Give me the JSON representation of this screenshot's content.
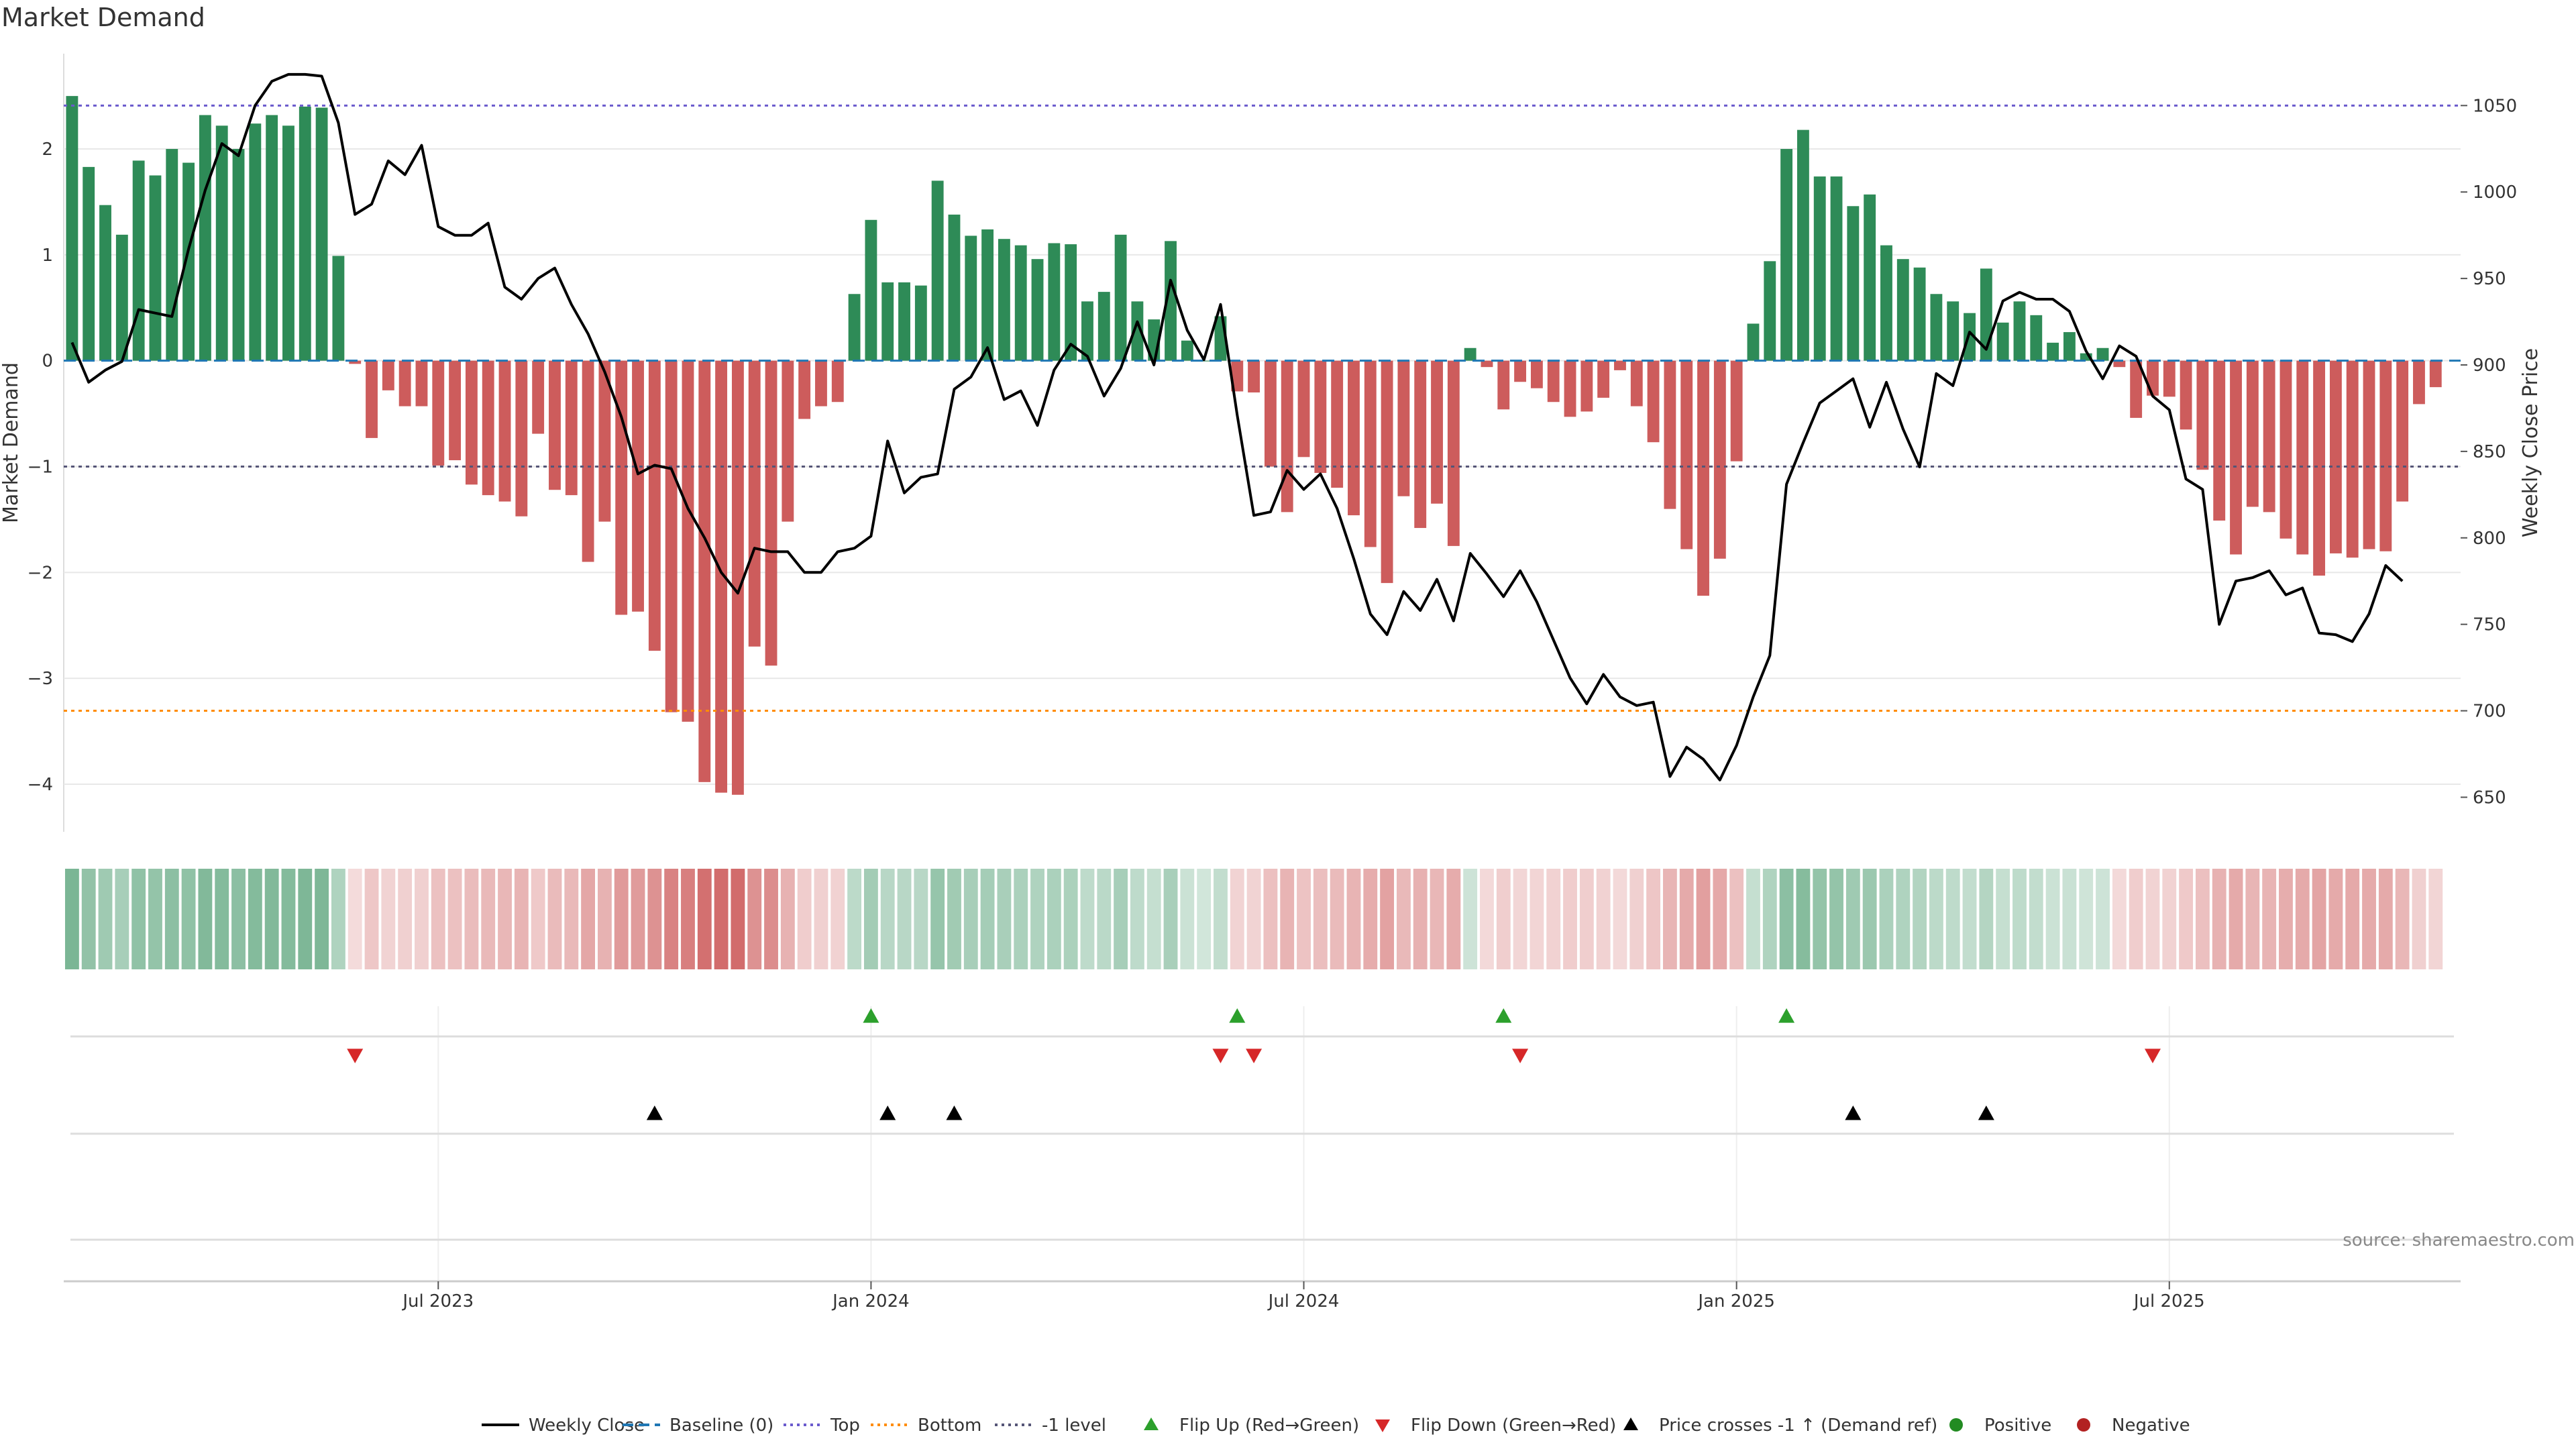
{
  "chart_data": {
    "type": "bar",
    "title": "Market Demand",
    "ylabel": "Market Demand",
    "y2label": "Weekly Close Price",
    "ylim": [
      -4.45,
      2.9
    ],
    "y2lim": [
      630,
      1080
    ],
    "yticks": [
      2,
      1,
      0,
      -1,
      -2,
      -3,
      -4
    ],
    "y2ticks": [
      1050,
      1000,
      950,
      900,
      850,
      800,
      750,
      700,
      650
    ],
    "hlines": {
      "top": 1050,
      "bottom": 700,
      "minus_one": -1
    },
    "x_start": "2023-02-20",
    "week_count": 144,
    "x_ticks": [
      "Jul 2023",
      "Jan 2024",
      "Jul 2024",
      "Jan 2025",
      "Jul 2025"
    ],
    "x_tick_weeks": [
      22,
      48,
      74,
      100,
      126
    ],
    "series": [
      {
        "name": "Market Demand",
        "values": [
          2.5,
          1.83,
          1.47,
          1.19,
          1.89,
          1.75,
          2.0,
          1.87,
          2.32,
          2.22,
          2.0,
          2.24,
          2.32,
          2.22,
          2.4,
          2.39,
          0.99,
          -0.03,
          -0.73,
          -0.28,
          -0.43,
          -0.43,
          -0.99,
          -0.94,
          -1.17,
          -1.27,
          -1.33,
          -1.47,
          -0.69,
          -1.22,
          -1.27,
          -1.9,
          -1.52,
          -2.4,
          -2.37,
          -2.74,
          -3.32,
          -3.41,
          -3.98,
          -4.08,
          -4.1,
          -2.7,
          -2.88,
          -1.52,
          -0.55,
          -0.43,
          -0.39,
          0.63,
          1.33,
          0.74,
          0.74,
          0.71,
          1.7,
          1.38,
          1.18,
          1.24,
          1.15,
          1.09,
          0.96,
          1.11,
          1.1,
          0.56,
          0.65,
          1.19,
          0.56,
          0.39,
          1.13,
          0.19,
          0.0,
          0.42,
          -0.29,
          -0.3,
          -1.0,
          -1.43,
          -0.91,
          -1.06,
          -1.2,
          -1.46,
          -1.76,
          -2.1,
          -1.28,
          -1.58,
          -1.35,
          -1.75,
          0.12,
          -0.06,
          -0.46,
          -0.2,
          -0.26,
          -0.39,
          -0.53,
          -0.48,
          -0.35,
          -0.09,
          -0.43,
          -0.77,
          -1.4,
          -1.78,
          -2.22,
          -1.87,
          -0.95,
          0.35,
          0.94,
          2.0,
          2.18,
          1.74,
          1.74,
          1.46,
          1.57,
          1.09,
          0.96,
          0.88,
          0.63,
          0.56,
          0.45,
          0.87,
          0.36,
          0.56,
          0.43,
          0.17,
          0.27,
          0.07,
          0.12,
          -0.06,
          -0.54,
          -0.33,
          -0.34,
          -0.65,
          -1.03,
          -1.51,
          -1.83,
          -1.38,
          -1.43,
          -1.68,
          -1.83,
          -2.03,
          -1.82,
          -1.86,
          -1.78,
          -1.8,
          -1.33,
          -0.41,
          -0.25
        ]
      },
      {
        "name": "Weekly Close",
        "values": [
          913,
          890,
          897,
          902,
          932,
          930,
          928,
          967,
          1001,
          1028,
          1021,
          1050,
          1064,
          1068,
          1068,
          1067,
          1040,
          987,
          993,
          1018,
          1010,
          1027,
          980,
          975,
          975,
          982,
          945,
          938,
          950,
          956,
          935,
          918,
          896,
          870,
          837,
          842,
          840,
          817,
          800,
          780,
          768,
          794,
          792,
          792,
          780,
          780,
          792,
          794,
          801,
          856,
          826,
          835,
          837,
          886,
          893,
          910,
          880,
          885,
          865,
          897,
          912,
          905,
          882,
          898,
          925,
          900,
          949,
          920,
          903,
          935,
          871,
          813,
          815,
          839,
          828,
          837,
          817,
          788,
          756,
          744,
          769,
          758,
          776,
          752,
          791,
          779,
          766,
          781,
          763,
          741,
          719,
          704,
          721,
          708,
          703,
          705,
          662,
          679,
          672,
          660,
          680,
          708,
          732,
          831,
          855,
          878,
          885,
          892,
          864,
          890,
          863,
          841,
          895,
          888,
          919,
          909,
          937,
          942,
          938,
          938,
          931,
          908,
          892,
          911,
          905,
          882,
          874,
          834,
          828,
          750,
          775,
          777,
          781,
          767,
          771,
          745,
          744,
          740,
          756,
          784,
          775
        ]
      }
    ],
    "heat_strip": "Market Demand color band (green = positive, red = negative)",
    "markers": {
      "flip_up_weeks": [
        48,
        70,
        86,
        103
      ],
      "flip_down_weeks": [
        17,
        69,
        71,
        87,
        125
      ],
      "price_cross_weeks": [
        35,
        49,
        53,
        107,
        115
      ]
    },
    "colors": {
      "positive": "#2e8b57",
      "negative": "#cd5c5c",
      "top": "#6a5acd",
      "bottom": "#ff8c00",
      "minus_one": "#555577",
      "baseline": "#1f77b4",
      "flip_up": "#2ca02c",
      "flip_down": "#d62728",
      "price_cross": "#000000",
      "pos_dot": "#228b22",
      "neg_dot": "#b22222"
    },
    "legend": [
      {
        "label": "Weekly Close",
        "kind": "line",
        "color": "#000000"
      },
      {
        "label": "Baseline (0)",
        "kind": "dash",
        "color": "#1f77b4"
      },
      {
        "label": "Top",
        "kind": "dot",
        "color": "#6a5acd"
      },
      {
        "label": "Bottom",
        "kind": "dot",
        "color": "#ff8c00"
      },
      {
        "label": "-1 level",
        "kind": "dot",
        "color": "#555577"
      },
      {
        "label": "Flip Up (Red→Green)",
        "kind": "up",
        "color": "#2ca02c"
      },
      {
        "label": "Flip Down (Green→Red)",
        "kind": "down",
        "color": "#d62728"
      },
      {
        "label": "Price crosses -1 ↑ (Demand ref)",
        "kind": "up",
        "color": "#000000"
      },
      {
        "label": "Positive",
        "kind": "circle",
        "color": "#228b22"
      },
      {
        "label": "Negative",
        "kind": "circle",
        "color": "#b22222"
      }
    ],
    "legend_position": "bottom-center",
    "source": "source: sharemaestro.com"
  }
}
